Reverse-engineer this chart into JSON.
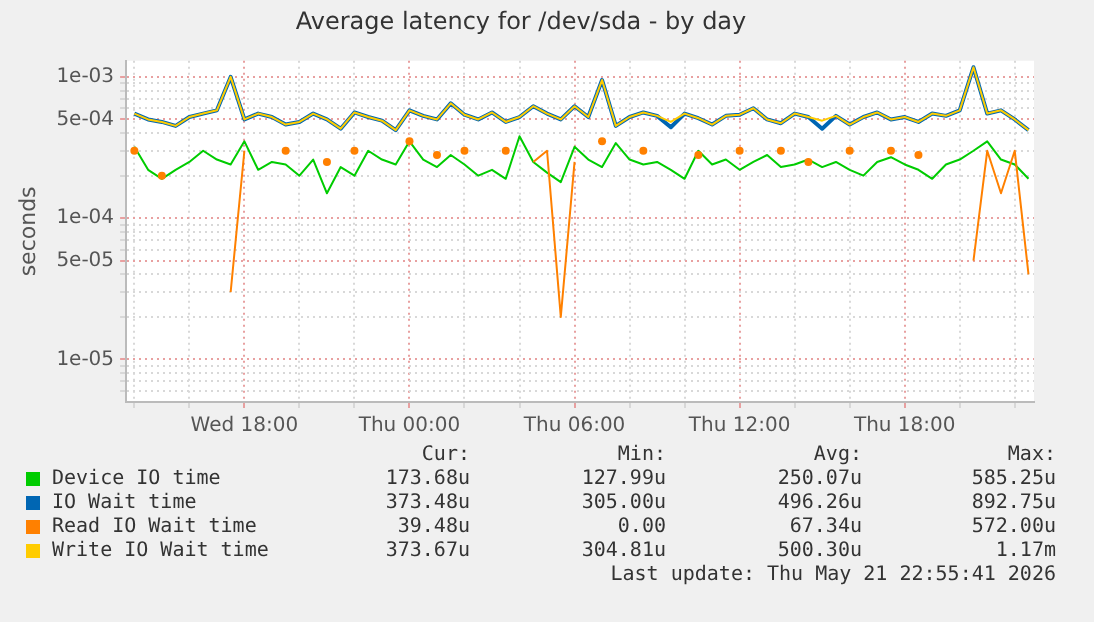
{
  "chart_data": {
    "type": "line",
    "title": "Average latency for /dev/sda - by day",
    "ylabel": "seconds",
    "log": "y",
    "grid": true,
    "legend": "bottom",
    "x": [
      "2026-05-20T14:00",
      "2026-05-20T14:30",
      "2026-05-20T15:00",
      "2026-05-20T15:30",
      "2026-05-20T16:00",
      "2026-05-20T16:30",
      "2026-05-20T17:00",
      "2026-05-20T17:30",
      "2026-05-20T18:00",
      "2026-05-20T18:30",
      "2026-05-20T19:00",
      "2026-05-20T19:30",
      "2026-05-20T20:00",
      "2026-05-20T20:30",
      "2026-05-20T21:00",
      "2026-05-20T21:30",
      "2026-05-20T22:00",
      "2026-05-20T22:30",
      "2026-05-20T23:00",
      "2026-05-20T23:30",
      "2026-05-21T00:00",
      "2026-05-21T00:30",
      "2026-05-21T01:00",
      "2026-05-21T01:30",
      "2026-05-21T02:00",
      "2026-05-21T02:30",
      "2026-05-21T03:00",
      "2026-05-21T03:30",
      "2026-05-21T04:00",
      "2026-05-21T04:30",
      "2026-05-21T05:00",
      "2026-05-21T05:30",
      "2026-05-21T06:00",
      "2026-05-21T06:30",
      "2026-05-21T07:00",
      "2026-05-21T07:30",
      "2026-05-21T08:00",
      "2026-05-21T08:30",
      "2026-05-21T09:00",
      "2026-05-21T09:30",
      "2026-05-21T10:00",
      "2026-05-21T10:30",
      "2026-05-21T11:00",
      "2026-05-21T11:30",
      "2026-05-21T12:00",
      "2026-05-21T12:30",
      "2026-05-21T13:00",
      "2026-05-21T13:30",
      "2026-05-21T14:00",
      "2026-05-21T14:30",
      "2026-05-21T15:00",
      "2026-05-21T15:30",
      "2026-05-21T16:00",
      "2026-05-21T16:30",
      "2026-05-21T17:00",
      "2026-05-21T17:30",
      "2026-05-21T18:00",
      "2026-05-21T18:30",
      "2026-05-21T19:00",
      "2026-05-21T19:30",
      "2026-05-21T20:00",
      "2026-05-21T20:30",
      "2026-05-21T21:00",
      "2026-05-21T21:30",
      "2026-05-21T22:00",
      "2026-05-21T22:30"
    ],
    "xlim": [
      "2026-05-20T13:42",
      "2026-05-21T22:42"
    ],
    "xticks": [
      {
        "value": "2026-05-20T14:00",
        "label": null
      },
      {
        "value": "2026-05-20T16:00",
        "label": null
      },
      {
        "value": "2026-05-20T18:00",
        "label": "Wed 18:00"
      },
      {
        "value": "2026-05-20T20:00",
        "label": null
      },
      {
        "value": "2026-05-20T22:00",
        "label": null
      },
      {
        "value": "2026-05-21T00:00",
        "label": "Thu 00:00"
      },
      {
        "value": "2026-05-21T02:00",
        "label": null
      },
      {
        "value": "2026-05-21T04:00",
        "label": null
      },
      {
        "value": "2026-05-21T06:00",
        "label": "Thu 06:00"
      },
      {
        "value": "2026-05-21T08:00",
        "label": null
      },
      {
        "value": "2026-05-21T10:00",
        "label": null
      },
      {
        "value": "2026-05-21T12:00",
        "label": "Thu 12:00"
      },
      {
        "value": "2026-05-21T14:00",
        "label": null
      },
      {
        "value": "2026-05-21T16:00",
        "label": null
      },
      {
        "value": "2026-05-21T18:00",
        "label": "Thu 18:00"
      },
      {
        "value": "2026-05-21T20:00",
        "label": null
      },
      {
        "value": "2026-05-21T22:00",
        "label": null
      }
    ],
    "ylim": [
      5e-06,
      0.0013
    ],
    "yticks": [
      {
        "value": 6e-06,
        "label": null
      },
      {
        "value": 7e-06,
        "label": null
      },
      {
        "value": 8e-06,
        "label": null
      },
      {
        "value": 9e-06,
        "label": null
      },
      {
        "value": 1e-05,
        "label": "1e-05"
      },
      {
        "value": 2e-05,
        "label": null
      },
      {
        "value": 3e-05,
        "label": null
      },
      {
        "value": 4e-05,
        "label": null
      },
      {
        "value": 5e-05,
        "label": "5e-05"
      },
      {
        "value": 6e-05,
        "label": null
      },
      {
        "value": 7e-05,
        "label": null
      },
      {
        "value": 8e-05,
        "label": null
      },
      {
        "value": 9e-05,
        "label": null
      },
      {
        "value": 0.0001,
        "label": "1e-04"
      },
      {
        "value": 0.0002,
        "label": null
      },
      {
        "value": 0.0003,
        "label": null
      },
      {
        "value": 0.0004,
        "label": null
      },
      {
        "value": 0.0005,
        "label": "5e-04"
      },
      {
        "value": 0.0006,
        "label": null
      },
      {
        "value": 0.0007,
        "label": null
      },
      {
        "value": 0.0008,
        "label": null
      },
      {
        "value": 0.0009,
        "label": null
      },
      {
        "value": 0.001,
        "label": "1e-03"
      }
    ],
    "series": [
      {
        "name": "Device IO time",
        "color": "#00cc00",
        "values": [
          0.00032,
          0.00022,
          0.00019,
          0.00022,
          0.00025,
          0.0003,
          0.00026,
          0.00024,
          0.00035,
          0.00022,
          0.00025,
          0.00024,
          0.0002,
          0.00026,
          0.00015,
          0.00023,
          0.0002,
          0.0003,
          0.00026,
          0.00024,
          0.00035,
          0.00026,
          0.00023,
          0.00028,
          0.00024,
          0.0002,
          0.00022,
          0.00019,
          0.00038,
          0.00025,
          0.00021,
          0.00018,
          0.00032,
          0.00026,
          0.00023,
          0.00034,
          0.00026,
          0.00024,
          0.00025,
          0.00022,
          0.00019,
          0.0003,
          0.00024,
          0.00026,
          0.00022,
          0.00025,
          0.00028,
          0.00023,
          0.00024,
          0.00026,
          0.00023,
          0.00025,
          0.00022,
          0.0002,
          0.00025,
          0.00027,
          0.00024,
          0.00022,
          0.00019,
          0.00024,
          0.00026,
          0.0003,
          0.00035,
          0.00026,
          0.00024,
          0.00019
        ]
      },
      {
        "name": "IO Wait time",
        "color": "#0066b3",
        "values": [
          0.00055,
          0.0005,
          0.00048,
          0.00045,
          0.00052,
          0.00055,
          0.00058,
          0.001,
          0.0005,
          0.00055,
          0.00052,
          0.00046,
          0.00048,
          0.00055,
          0.0005,
          0.00043,
          0.00056,
          0.00052,
          0.00049,
          0.00042,
          0.00058,
          0.00053,
          0.0005,
          0.00065,
          0.00054,
          0.0005,
          0.00056,
          0.00048,
          0.00052,
          0.00062,
          0.00055,
          0.0005,
          0.00062,
          0.00052,
          0.00095,
          0.00045,
          0.00052,
          0.00056,
          0.00053,
          0.00044,
          0.00055,
          0.00051,
          0.00046,
          0.00053,
          0.00054,
          0.0006,
          0.0005,
          0.00047,
          0.00055,
          0.00052,
          0.00043,
          0.00053,
          0.00046,
          0.00052,
          0.00056,
          0.0005,
          0.00052,
          0.00048,
          0.00055,
          0.00053,
          0.00058,
          0.00117,
          0.00055,
          0.00058,
          0.0005,
          0.00042
        ]
      },
      {
        "name": "Read IO Wait time",
        "color": "#ff8000",
        "values": [
          0.0003,
          null,
          0.0002,
          null,
          null,
          null,
          null,
          3e-05,
          0.0003,
          null,
          null,
          0.0003,
          null,
          null,
          0.00025,
          null,
          0.0003,
          null,
          null,
          null,
          0.00035,
          null,
          0.00028,
          null,
          0.0003,
          null,
          null,
          0.0003,
          null,
          0.00025,
          0.0003,
          2e-05,
          0.00025,
          null,
          0.00035,
          null,
          null,
          0.0003,
          null,
          null,
          null,
          0.00028,
          null,
          null,
          0.0003,
          null,
          null,
          0.0003,
          null,
          0.00025,
          null,
          null,
          0.0003,
          null,
          null,
          0.0003,
          null,
          0.00028,
          null,
          null,
          null,
          5e-05,
          0.0003,
          0.00015,
          0.0003,
          4e-05
        ]
      },
      {
        "name": "Write IO Wait time",
        "color": "#ffcc00",
        "values": [
          0.00055,
          0.0005,
          0.00048,
          0.00045,
          0.00052,
          0.00055,
          0.00058,
          0.001,
          0.0005,
          0.00055,
          0.00052,
          0.00046,
          0.00048,
          0.00055,
          0.0005,
          0.00043,
          0.00056,
          0.00052,
          0.00049,
          0.00042,
          0.00058,
          0.00053,
          0.0005,
          0.00065,
          0.00054,
          0.0005,
          0.00056,
          0.00048,
          0.00052,
          0.00062,
          0.00055,
          0.0005,
          0.00062,
          0.00052,
          0.00095,
          0.00045,
          0.00052,
          0.00056,
          0.00053,
          0.00048,
          0.00055,
          0.00051,
          0.00046,
          0.00053,
          0.00054,
          0.0006,
          0.0005,
          0.00047,
          0.00055,
          0.00052,
          0.00049,
          0.00053,
          0.00046,
          0.00052,
          0.00056,
          0.0005,
          0.00052,
          0.00048,
          0.00055,
          0.00053,
          0.00058,
          0.00117,
          0.00055,
          0.00058,
          0.0005,
          0.00042
        ]
      }
    ],
    "annotations": [
      "Cur:",
      "Min:",
      "Avg:",
      "Max:",
      "173.68u",
      "127.99u",
      "250.07u",
      "585.25u",
      "373.48u",
      "305.00u",
      "496.26u",
      "892.75u",
      "39.48u",
      "0.00",
      "67.34u",
      "572.00u",
      "373.67u",
      "304.81u",
      "500.30u",
      "1.17m",
      "Last update: Thu May 21 22:55:41 2026"
    ]
  }
}
